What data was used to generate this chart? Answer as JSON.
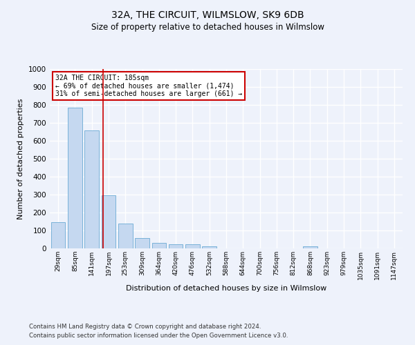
{
  "title": "32A, THE CIRCUIT, WILMSLOW, SK9 6DB",
  "subtitle": "Size of property relative to detached houses in Wilmslow",
  "xlabel": "Distribution of detached houses by size in Wilmslow",
  "ylabel": "Number of detached properties",
  "footnote1": "Contains HM Land Registry data © Crown copyright and database right 2024.",
  "footnote2": "Contains public sector information licensed under the Open Government Licence v3.0.",
  "bin_labels": [
    "29sqm",
    "85sqm",
    "141sqm",
    "197sqm",
    "253sqm",
    "309sqm",
    "364sqm",
    "420sqm",
    "476sqm",
    "532sqm",
    "588sqm",
    "644sqm",
    "700sqm",
    "756sqm",
    "812sqm",
    "868sqm",
    "923sqm",
    "979sqm",
    "1035sqm",
    "1091sqm",
    "1147sqm"
  ],
  "bar_values": [
    145,
    785,
    658,
    296,
    138,
    57,
    31,
    22,
    22,
    10,
    0,
    0,
    0,
    0,
    0,
    10,
    0,
    0,
    0,
    0,
    0
  ],
  "bar_color": "#c5d8f0",
  "bar_edge_color": "#6aaad4",
  "vline_x": 2.65,
  "vline_color": "#cc0000",
  "annotation_line1": "32A THE CIRCUIT: 185sqm",
  "annotation_line2": "← 69% of detached houses are smaller (1,474)",
  "annotation_line3": "31% of semi-detached houses are larger (661) →",
  "annotation_box_color": "#cc0000",
  "ylim": [
    0,
    1000
  ],
  "yticks": [
    0,
    100,
    200,
    300,
    400,
    500,
    600,
    700,
    800,
    900,
    1000
  ],
  "background_color": "#eef2fb",
  "grid_color": "#ffffff"
}
